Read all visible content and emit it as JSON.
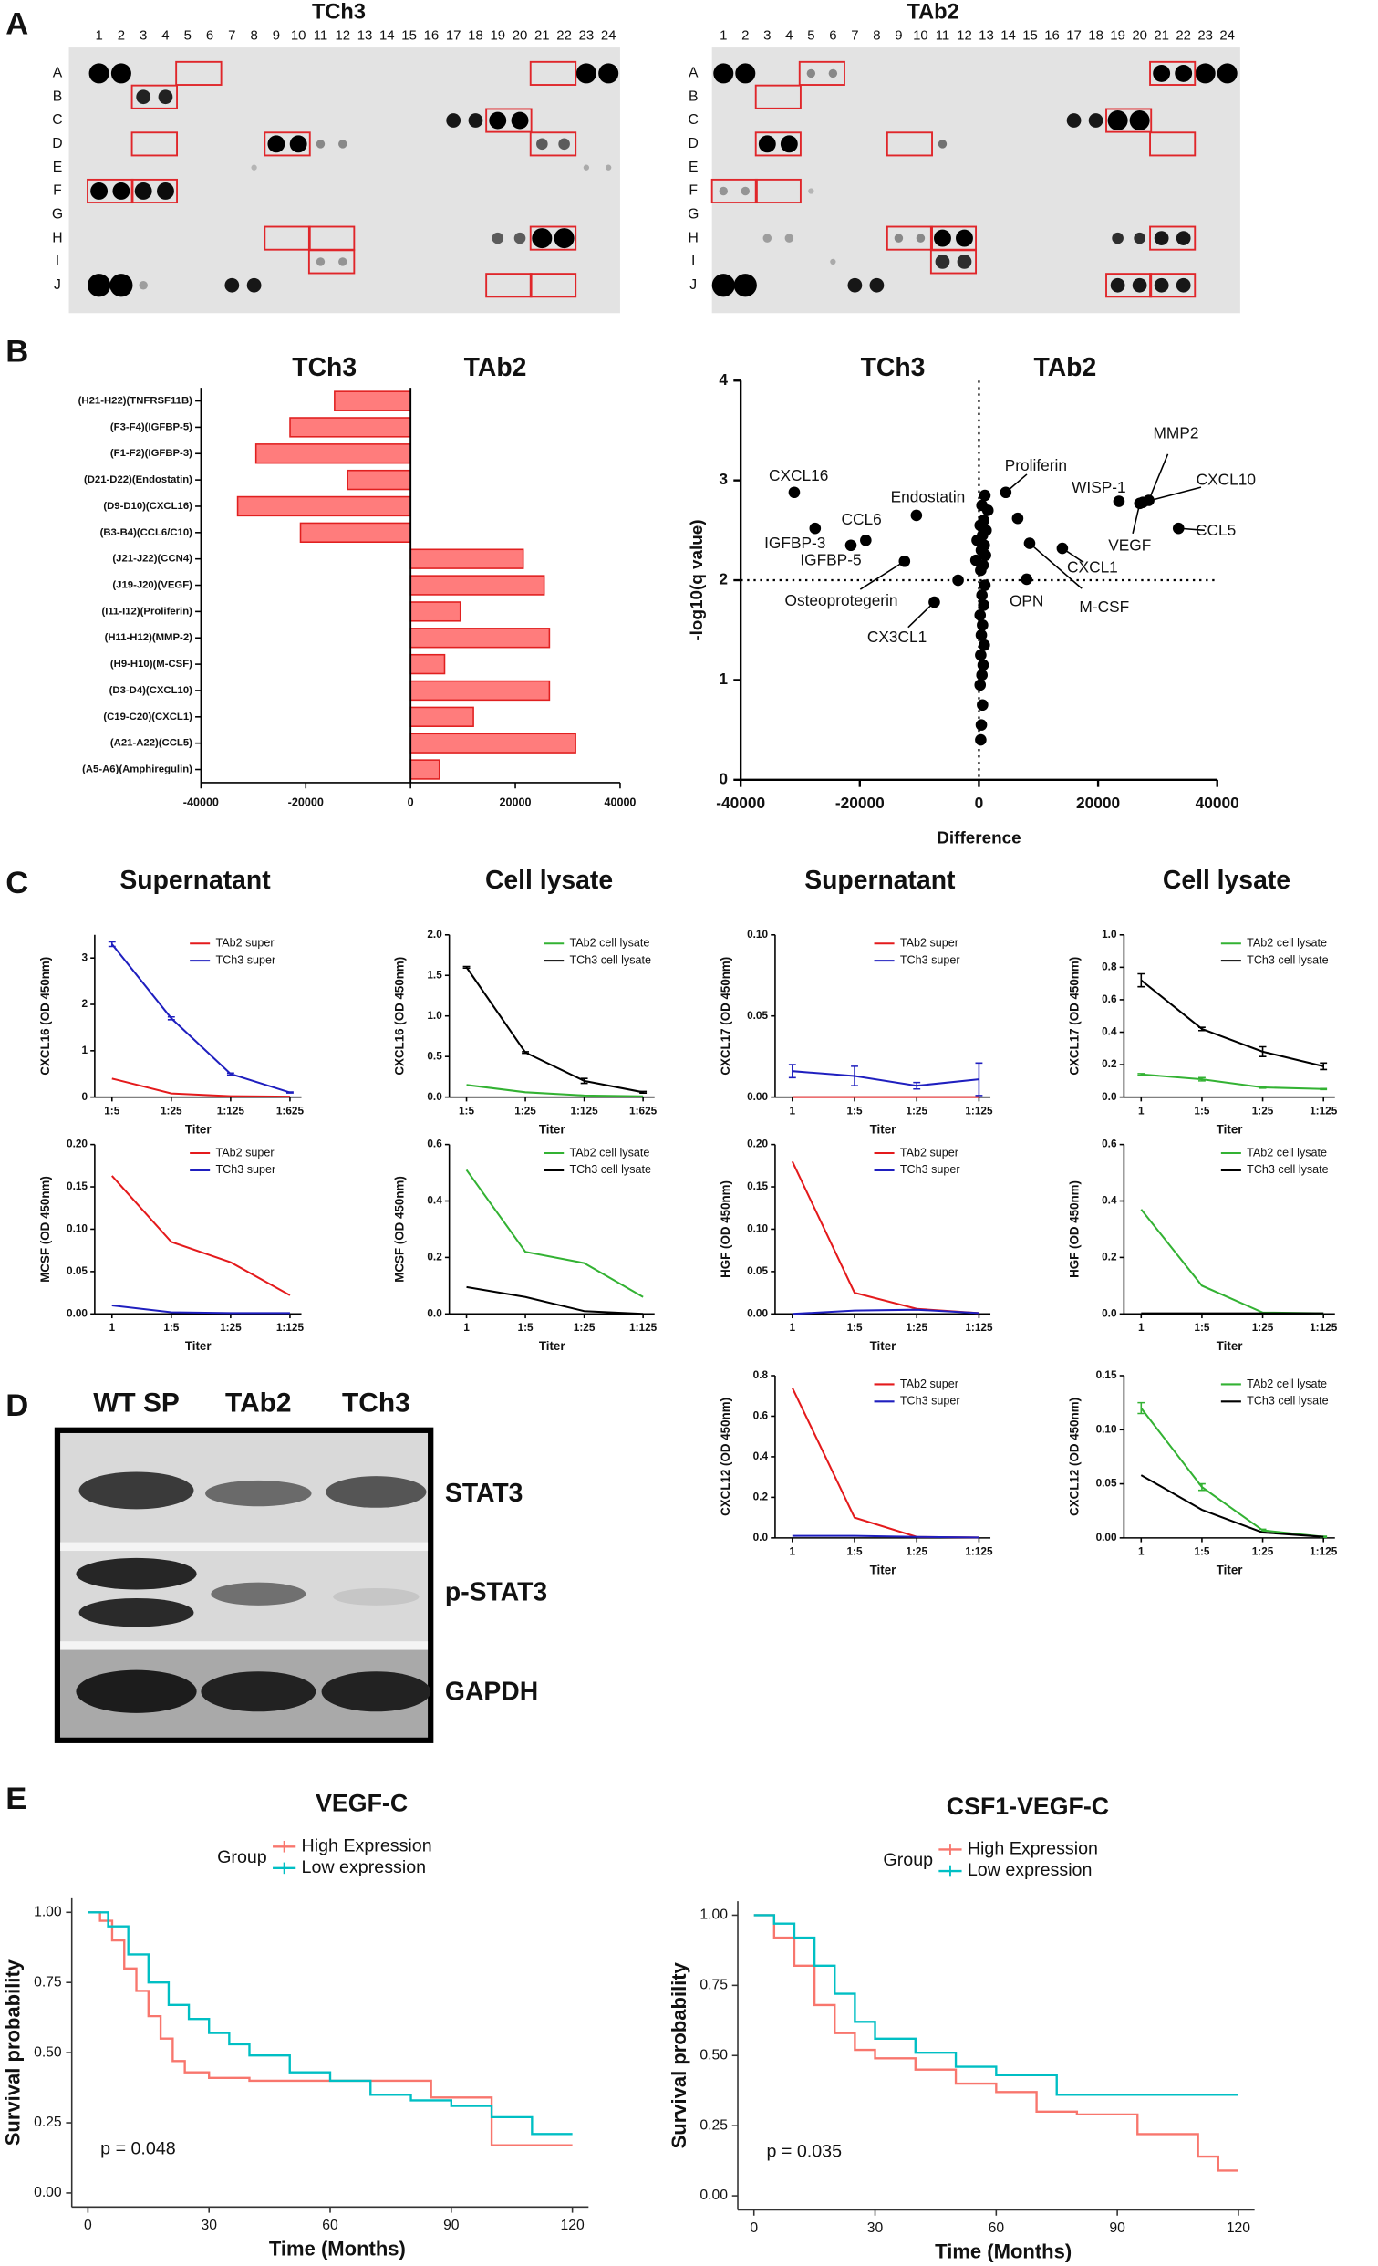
{
  "panel_labels": [
    "A",
    "B",
    "C",
    "D",
    "E"
  ],
  "array": {
    "blots": [
      {
        "title": "TCh3"
      },
      {
        "title": "TAb2"
      }
    ],
    "columns": [
      "1",
      "2",
      "3",
      "4",
      "5",
      "6",
      "7",
      "8",
      "9",
      "10",
      "11",
      "12",
      "13",
      "14",
      "15",
      "16",
      "17",
      "18",
      "19",
      "20",
      "21",
      "22",
      "23",
      "24"
    ],
    "rows": [
      "A",
      "B",
      "C",
      "D",
      "E",
      "F",
      "G",
      "H",
      "I",
      "J"
    ]
  },
  "western": {
    "lanes": [
      "WT SP",
      "TAb2",
      "TCh3"
    ],
    "bands": [
      "STAT3",
      "p-STAT3",
      "GAPDH"
    ]
  },
  "chart_data": [
    {
      "type": "hbar",
      "annotations": [
        "TCh3",
        "TAb2"
      ],
      "categories": [
        "(H21-H22)(TNFRSF11B)",
        "(F3-F4)(IGFBP-5)",
        "(F1-F2)(IGFBP-3)",
        "(D21-D22)(Endostatin)",
        "(D9-D10)(CXCL16)",
        "(B3-B4)(CCL6/C10)",
        "(J21-J22)(CCN4)",
        "(J19-J20)(VEGF)",
        "(I11-I12)(Proliferin)",
        "(H11-H12)(MMP-2)",
        "(H9-H10)(M-CSF)",
        "(D3-D4)(CXCL10)",
        "(C19-C20)(CXCL1)",
        "(A21-A22)(CCL5)",
        "(A5-A6)(Amphiregulin)"
      ],
      "values": [
        -14500,
        -23000,
        -29500,
        -12000,
        -33000,
        -21000,
        21500,
        25500,
        9500,
        26500,
        6500,
        26500,
        12000,
        31500,
        5500
      ],
      "color": "#ff7c7c",
      "edge_color": "#e02020",
      "xlim": [
        -40000,
        40000
      ],
      "xticks": [
        -40000,
        -20000,
        0,
        20000,
        40000
      ]
    },
    {
      "type": "scatter",
      "annotations": [
        "TCh3",
        "TAb2"
      ],
      "x_label": "Difference",
      "y_label": "-log10(q value)",
      "x": [
        -31000,
        -27500,
        -19000,
        -21500,
        -10500,
        -12500,
        -7500,
        4500,
        23500,
        28500,
        27500,
        27000,
        33500,
        14000,
        8500,
        8000,
        1000,
        500,
        1500,
        800,
        200,
        1200,
        600,
        -300,
        900,
        400,
        1100,
        -500,
        700,
        300,
        -3500,
        1000,
        500,
        800,
        200,
        600,
        400,
        900,
        300,
        700,
        500,
        200,
        600,
        400,
        300,
        6500
      ],
      "values": [
        2.88,
        2.52,
        2.4,
        2.35,
        2.65,
        2.19,
        1.78,
        2.88,
        2.79,
        2.8,
        2.78,
        2.77,
        2.52,
        2.32,
        2.37,
        2.01,
        2.85,
        2.75,
        2.7,
        2.6,
        2.55,
        2.5,
        2.45,
        2.4,
        2.35,
        2.3,
        2.25,
        2.2,
        2.15,
        2.1,
        2.0,
        1.95,
        1.85,
        1.75,
        1.65,
        1.55,
        1.45,
        1.35,
        1.25,
        1.15,
        1.05,
        0.95,
        0.75,
        0.55,
        0.4,
        2.62
      ],
      "point_labels": [
        "CXCL16",
        "IGFBP-3",
        "CCL6",
        "IGFBP-5",
        "Endostatin",
        "Osteoprotegerin",
        "CX3CL1",
        "Proliferin",
        "WISP-1",
        "MMP2",
        "CXCL10",
        "VEGF",
        "CCL5",
        "CXCL1",
        "M-CSF",
        "OPN",
        null,
        null,
        null,
        null,
        null,
        null,
        null,
        null,
        null,
        null,
        null,
        null,
        null,
        null,
        null,
        null,
        null,
        null,
        null,
        null,
        null,
        null,
        null,
        null,
        null,
        null,
        null,
        null,
        null,
        null
      ],
      "color": "#000000",
      "xlim": [
        -40000,
        40000
      ],
      "xticks": [
        -40000,
        -20000,
        0,
        20000,
        40000
      ],
      "ylim": [
        0,
        4
      ],
      "yticks": [
        0,
        1,
        2,
        3,
        4
      ],
      "reference_lines": {
        "x": 0,
        "y": 2
      }
    },
    {
      "type": "line",
      "title": "Supernatant",
      "y_label": "CXCL16 (OD 450nm)",
      "x_label": "Titer",
      "categories": [
        "1:5",
        "1:25",
        "1:125",
        "1:625"
      ],
      "ylim": [
        0,
        3.5
      ],
      "yticks": [
        0,
        1,
        2,
        3
      ],
      "series": [
        {
          "name": "TAb2 super",
          "color": "#e41a1c",
          "values": [
            0.4,
            0.08,
            0.02,
            0.01
          ]
        },
        {
          "name": "TCh3 super",
          "color": "#1f1fbf",
          "values": [
            3.3,
            1.7,
            0.5,
            0.1
          ],
          "errors": [
            0.05,
            0.03,
            0.02,
            0.01
          ]
        }
      ]
    },
    {
      "type": "line",
      "title": "Cell lysate",
      "y_label": "CXCL16 (OD 450nm)",
      "x_label": "Titer",
      "categories": [
        "1:5",
        "1:25",
        "1:125",
        "1:625"
      ],
      "ylim": [
        0,
        2
      ],
      "yticks": [
        {
          "value": 0,
          "label": "0.0"
        },
        {
          "value": 0.5,
          "label": "0.5"
        },
        {
          "value": 1,
          "label": "1.0"
        },
        {
          "value": 1.5,
          "label": "1.5"
        },
        {
          "value": 2,
          "label": "2.0"
        }
      ],
      "series": [
        {
          "name": "TAb2 cell lysate",
          "color": "#33b233",
          "values": [
            0.15,
            0.06,
            0.02,
            0.01
          ]
        },
        {
          "name": "TCh3 cell lysate",
          "color": "#000000",
          "values": [
            1.6,
            0.55,
            0.2,
            0.06
          ],
          "errors": [
            0.01,
            0.01,
            0.03,
            0.01
          ]
        }
      ]
    },
    {
      "type": "line",
      "title": "Supernatant",
      "y_label": "CXCL17 (OD 450nm)",
      "x_label": "Titer",
      "categories": [
        "1",
        "1:5",
        "1:25",
        "1:125"
      ],
      "ylim": [
        0,
        0.1
      ],
      "yticks": [
        {
          "value": 0,
          "label": "0.00"
        },
        {
          "value": 0.05,
          "label": "0.05"
        },
        {
          "value": 0.1,
          "label": "0.10"
        }
      ],
      "series": [
        {
          "name": "TAb2 super",
          "color": "#e41a1c",
          "values": [
            0,
            0,
            0,
            0
          ]
        },
        {
          "name": "TCh3 super",
          "color": "#1f1fbf",
          "values": [
            0.016,
            0.013,
            0.007,
            0.011
          ],
          "errors": [
            0.004,
            0.006,
            0.002,
            0.01
          ]
        }
      ]
    },
    {
      "type": "line",
      "title": "Cell lysate",
      "y_label": "CXCL17 (OD 450nm)",
      "x_label": "Titer",
      "categories": [
        "1",
        "1:5",
        "1:25",
        "1:125"
      ],
      "ylim": [
        0,
        1
      ],
      "yticks": [
        {
          "value": 0,
          "label": "0.0"
        },
        {
          "value": 0.2,
          "label": "0.2"
        },
        {
          "value": 0.4,
          "label": "0.4"
        },
        {
          "value": 0.6,
          "label": "0.6"
        },
        {
          "value": 0.8,
          "label": "0.8"
        },
        {
          "value": 1,
          "label": "1.0"
        }
      ],
      "series": [
        {
          "name": "TAb2 cell lysate",
          "color": "#33b233",
          "values": [
            0.14,
            0.11,
            0.06,
            0.05
          ],
          "errors": [
            0.005,
            0.01,
            0.005,
            0.003
          ]
        },
        {
          "name": "TCh3 cell lysate",
          "color": "#000000",
          "values": [
            0.72,
            0.42,
            0.28,
            0.19
          ],
          "errors": [
            0.04,
            0.01,
            0.03,
            0.02
          ]
        }
      ]
    },
    {
      "type": "line",
      "y_label": "MCSF (OD 450nm)",
      "x_label": "Titer",
      "categories": [
        "1",
        "1:5",
        "1:25",
        "1:125"
      ],
      "ylim": [
        0,
        0.2
      ],
      "yticks": [
        {
          "value": 0,
          "label": "0.00"
        },
        {
          "value": 0.05,
          "label": "0.05"
        },
        {
          "value": 0.1,
          "label": "0.10"
        },
        {
          "value": 0.15,
          "label": "0.15"
        },
        {
          "value": 0.2,
          "label": "0.20"
        }
      ],
      "series": [
        {
          "name": "TAb2 super",
          "color": "#e41a1c",
          "values": [
            0.163,
            0.085,
            0.061,
            0.022
          ]
        },
        {
          "name": "TCh3 super",
          "color": "#1f1fbf",
          "values": [
            0.01,
            0.002,
            0.001,
            0.001
          ]
        }
      ]
    },
    {
      "type": "line",
      "y_label": "MCSF (OD 450nm)",
      "x_label": "Titer",
      "categories": [
        "1",
        "1:5",
        "1:25",
        "1:125"
      ],
      "ylim": [
        0,
        0.6
      ],
      "yticks": [
        {
          "value": 0,
          "label": "0.0"
        },
        {
          "value": 0.2,
          "label": "0.2"
        },
        {
          "value": 0.4,
          "label": "0.4"
        },
        {
          "value": 0.6,
          "label": "0.6"
        }
      ],
      "series": [
        {
          "name": "TAb2 cell lysate",
          "color": "#33b233",
          "values": [
            0.51,
            0.22,
            0.18,
            0.06
          ]
        },
        {
          "name": "TCh3 cell lysate",
          "color": "#000000",
          "values": [
            0.095,
            0.06,
            0.01,
            0
          ]
        }
      ]
    },
    {
      "type": "line",
      "y_label": "HGF (OD 450nm)",
      "x_label": "Titer",
      "categories": [
        "1",
        "1:5",
        "1:25",
        "1:125"
      ],
      "ylim": [
        0,
        0.2
      ],
      "yticks": [
        {
          "value": 0,
          "label": "0.00"
        },
        {
          "value": 0.05,
          "label": "0.05"
        },
        {
          "value": 0.1,
          "label": "0.10"
        },
        {
          "value": 0.15,
          "label": "0.15"
        },
        {
          "value": 0.2,
          "label": "0.20"
        }
      ],
      "series": [
        {
          "name": "TAb2 super",
          "color": "#e41a1c",
          "values": [
            0.18,
            0.025,
            0.006,
            0.001
          ]
        },
        {
          "name": "TCh3 super",
          "color": "#1f1fbf",
          "values": [
            0,
            0.004,
            0.005,
            0.001
          ]
        }
      ]
    },
    {
      "type": "line",
      "y_label": "HGF (OD 450nm)",
      "x_label": "Titer",
      "categories": [
        "1",
        "1:5",
        "1:25",
        "1:125"
      ],
      "ylim": [
        0,
        0.6
      ],
      "yticks": [
        {
          "value": 0,
          "label": "0.0"
        },
        {
          "value": 0.2,
          "label": "0.2"
        },
        {
          "value": 0.4,
          "label": "0.4"
        },
        {
          "value": 0.6,
          "label": "0.6"
        }
      ],
      "series": [
        {
          "name": "TAb2 cell lysate",
          "color": "#33b233",
          "values": [
            0.37,
            0.1,
            0.005,
            0.002
          ]
        },
        {
          "name": "TCh3 cell lysate",
          "color": "#000000",
          "values": [
            0.002,
            0.002,
            0.002,
            0.002
          ]
        }
      ]
    },
    {
      "type": "line",
      "y_label": "CXCL12 (OD 450nm)",
      "x_label": "Titer",
      "categories": [
        "1",
        "1:5",
        "1:25",
        "1:125"
      ],
      "ylim": [
        0,
        0.8
      ],
      "yticks": [
        {
          "value": 0,
          "label": "0.0"
        },
        {
          "value": 0.2,
          "label": "0.2"
        },
        {
          "value": 0.4,
          "label": "0.4"
        },
        {
          "value": 0.6,
          "label": "0.6"
        },
        {
          "value": 0.8,
          "label": "0.8"
        }
      ],
      "series": [
        {
          "name": "TAb2 super",
          "color": "#e41a1c",
          "values": [
            0.74,
            0.1,
            0.005,
            0.002
          ]
        },
        {
          "name": "TCh3 super",
          "color": "#1f1fbf",
          "values": [
            0.01,
            0.01,
            0.005,
            0.002
          ]
        }
      ]
    },
    {
      "type": "line",
      "y_label": "CXCL12 (OD 450nm)",
      "x_label": "Titer",
      "categories": [
        "1",
        "1:5",
        "1:25",
        "1:125"
      ],
      "ylim": [
        0,
        0.15
      ],
      "yticks": [
        {
          "value": 0,
          "label": "0.00"
        },
        {
          "value": 0.05,
          "label": "0.05"
        },
        {
          "value": 0.1,
          "label": "0.10"
        },
        {
          "value": 0.15,
          "label": "0.15"
        }
      ],
      "series": [
        {
          "name": "TAb2 cell lysate",
          "color": "#33b233",
          "values": [
            0.12,
            0.047,
            0.007,
            0.001
          ],
          "errors": [
            0.005,
            0.003,
            0.001,
            0.0005
          ]
        },
        {
          "name": "TCh3 cell lysate",
          "color": "#000000",
          "values": [
            0.058,
            0.026,
            0.005,
            0.001
          ]
        }
      ]
    },
    {
      "type": "step",
      "title": "VEGF-C",
      "legend_title": "Group",
      "x_label": "Time (Months)",
      "y_label": "Survival probability",
      "annotation": "p = 0.048",
      "xlim": [
        -4,
        124
      ],
      "xticks": [
        0,
        30,
        60,
        90,
        120
      ],
      "ylim": [
        -0.05,
        1.05
      ],
      "yticks": [
        {
          "value": 0,
          "label": "0.00"
        },
        {
          "value": 0.25,
          "label": "0.25"
        },
        {
          "value": 0.5,
          "label": "0.50"
        },
        {
          "value": 0.75,
          "label": "0.75"
        },
        {
          "value": 1,
          "label": "1.00"
        }
      ],
      "series": [
        {
          "name": "High Expression",
          "color": "#f8766d",
          "x": [
            0,
            3,
            6,
            9,
            12,
            15,
            18,
            21,
            24,
            30,
            40,
            60,
            85,
            100,
            120
          ],
          "values": [
            1,
            0.97,
            0.9,
            0.8,
            0.72,
            0.63,
            0.55,
            0.47,
            0.43,
            0.41,
            0.4,
            0.4,
            0.34,
            0.17,
            0.17
          ]
        },
        {
          "name": "Low expression",
          "color": "#00bfc4",
          "x": [
            0,
            5,
            10,
            15,
            20,
            25,
            30,
            35,
            40,
            50,
            60,
            70,
            80,
            90,
            100,
            110,
            120
          ],
          "values": [
            1,
            0.95,
            0.85,
            0.75,
            0.67,
            0.62,
            0.57,
            0.53,
            0.49,
            0.43,
            0.4,
            0.35,
            0.33,
            0.31,
            0.27,
            0.21,
            0.21
          ]
        }
      ]
    },
    {
      "type": "step",
      "title": "CSF1-VEGF-C",
      "legend_title": "Group",
      "x_label": "Time (Months)",
      "y_label": "Survival probability",
      "annotation": "p = 0.035",
      "xlim": [
        -4,
        124
      ],
      "xticks": [
        0,
        30,
        60,
        90,
        120
      ],
      "ylim": [
        -0.05,
        1.05
      ],
      "yticks": [
        {
          "value": 0,
          "label": "0.00"
        },
        {
          "value": 0.25,
          "label": "0.25"
        },
        {
          "value": 0.5,
          "label": "0.50"
        },
        {
          "value": 0.75,
          "label": "0.75"
        },
        {
          "value": 1,
          "label": "1.00"
        }
      ],
      "series": [
        {
          "name": "High Expression",
          "color": "#f8766d",
          "x": [
            0,
            5,
            10,
            15,
            20,
            25,
            30,
            40,
            50,
            60,
            70,
            80,
            90,
            95,
            110,
            115,
            120
          ],
          "values": [
            1,
            0.92,
            0.82,
            0.68,
            0.58,
            0.52,
            0.49,
            0.45,
            0.4,
            0.37,
            0.3,
            0.29,
            0.29,
            0.22,
            0.14,
            0.09,
            0.09
          ]
        },
        {
          "name": "Low expression",
          "color": "#00bfc4",
          "x": [
            0,
            5,
            10,
            15,
            20,
            25,
            30,
            40,
            50,
            60,
            70,
            75,
            120
          ],
          "values": [
            1,
            0.97,
            0.92,
            0.82,
            0.72,
            0.62,
            0.56,
            0.51,
            0.46,
            0.43,
            0.43,
            0.36,
            0.36
          ]
        }
      ]
    }
  ]
}
